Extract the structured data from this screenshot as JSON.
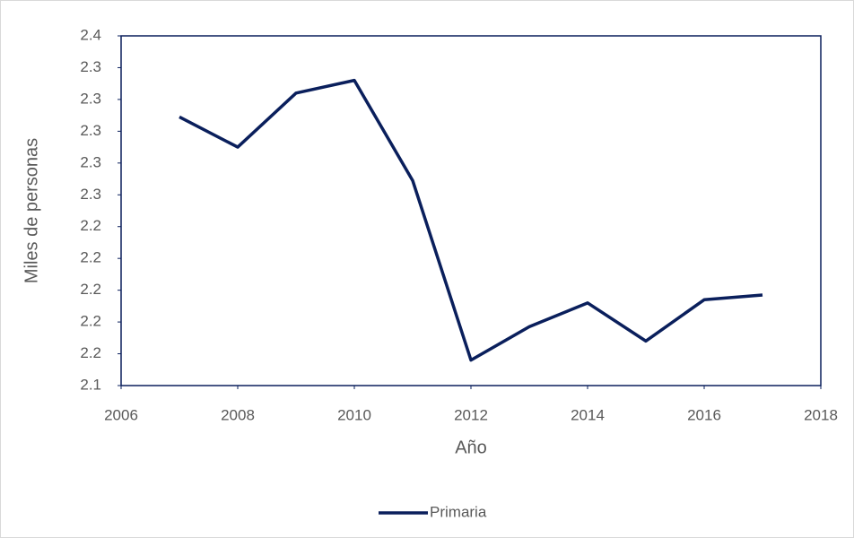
{
  "chart_data": {
    "type": "line",
    "x": [
      2007,
      2008,
      2009,
      2010,
      2011,
      2012,
      2013,
      2014,
      2015,
      2016,
      2017
    ],
    "series": [
      {
        "name": "Primaria",
        "color": "#0a1f5c",
        "values": [
          2.309,
          2.29,
          2.324,
          2.332,
          2.269,
          2.156,
          2.177,
          2.192,
          2.168,
          2.194,
          2.197
        ]
      }
    ],
    "xlim": [
      2006,
      2018
    ],
    "xticks": [
      2006,
      2008,
      2010,
      2012,
      2014,
      2016,
      2018
    ],
    "ylim": [
      2.14,
      2.36
    ],
    "yticks": [
      {
        "value": 2.14,
        "label": "2.1"
      },
      {
        "value": 2.16,
        "label": "2.2"
      },
      {
        "value": 2.18,
        "label": "2.2"
      },
      {
        "value": 2.2,
        "label": "2.2"
      },
      {
        "value": 2.22,
        "label": "2.2"
      },
      {
        "value": 2.24,
        "label": "2.2"
      },
      {
        "value": 2.26,
        "label": "2.3"
      },
      {
        "value": 2.28,
        "label": "2.3"
      },
      {
        "value": 2.3,
        "label": "2.3"
      },
      {
        "value": 2.32,
        "label": "2.3"
      },
      {
        "value": 2.34,
        "label": "2.3"
      },
      {
        "value": 2.36,
        "label": "2.4"
      }
    ],
    "xlabel": "Año",
    "ylabel": "Miles de personas",
    "legend": "bottom"
  }
}
